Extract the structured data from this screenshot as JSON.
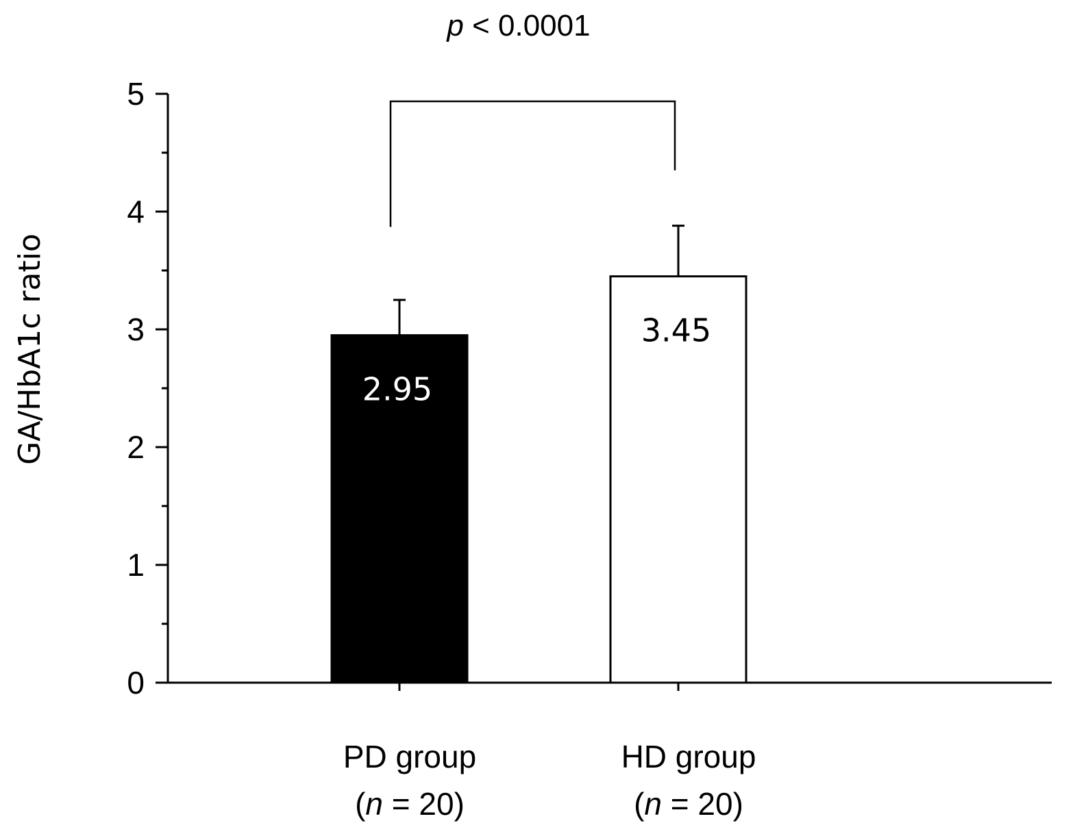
{
  "chart_data": {
    "type": "bar",
    "categories": [
      "PD group",
      "HD group"
    ],
    "category_n": [
      "20",
      "20"
    ],
    "n_symbol": "n",
    "values": [
      2.95,
      3.45
    ],
    "value_labels": [
      "2.95",
      "3.45"
    ],
    "error_upper": [
      3.25,
      3.88
    ],
    "bar_colors": [
      "#000000",
      "#ffffff"
    ],
    "value_label_colors": [
      "#ffffff",
      "#000000"
    ],
    "ylabel": "GA/HbA1c  ratio",
    "xlabel": "",
    "ylim": [
      0,
      5
    ],
    "y_ticks": [
      0,
      1,
      2,
      3,
      4,
      5
    ],
    "grid": false,
    "significance": {
      "p_symbol": "p",
      "p_rest": " < 0.0001"
    }
  }
}
